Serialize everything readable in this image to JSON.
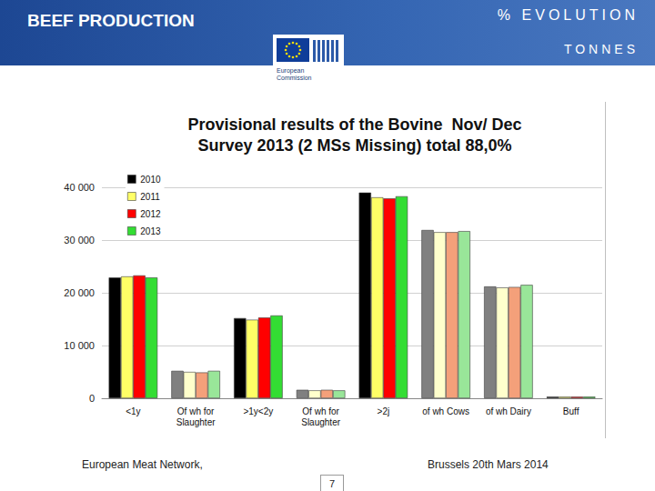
{
  "header": {
    "title": "BEEF PRODUCTION",
    "right_top": "% EVOLUTION",
    "right_bottom": "TONNES",
    "logo_text": [
      "European",
      "Commission"
    ]
  },
  "chart_data": {
    "type": "bar",
    "title": "Provisional results of the Bovine  Nov/ Dec\nSurvey 2013 (2 MSs Missing) total 88,0%",
    "categories": [
      "<1y",
      "Of wh for\nSlaughter",
      ">1y<2y",
      "Of wh for\nSlaughter",
      ">2j",
      "of wh Cows",
      "of wh Dairy",
      "Buff"
    ],
    "series": [
      {
        "name": "2010",
        "color": "#000000",
        "colors": [
          "#000000",
          "#808080",
          "#000000",
          "#808080",
          "#000000",
          "#808080",
          "#808080",
          "#000000"
        ],
        "values": [
          22900,
          5200,
          15200,
          1600,
          39000,
          31900,
          21200,
          300
        ]
      },
      {
        "name": "2011",
        "color": "#ffff66",
        "colors": [
          "#ffff66",
          "#ffffcc",
          "#ffff66",
          "#ffffcc",
          "#ffff66",
          "#ffffcc",
          "#ffffcc",
          "#ffff66"
        ],
        "values": [
          23100,
          5000,
          14900,
          1500,
          38100,
          31500,
          21000,
          300
        ]
      },
      {
        "name": "2012",
        "color": "#ff0000",
        "colors": [
          "#ff0000",
          "#f4a07a",
          "#ff0000",
          "#f4a07a",
          "#ff0000",
          "#f4a07a",
          "#f4a07a",
          "#ff0000"
        ],
        "values": [
          23300,
          4900,
          15300,
          1600,
          37900,
          31500,
          21100,
          300
        ]
      },
      {
        "name": "2013",
        "color": "#33dd33",
        "colors": [
          "#33dd33",
          "#99e699",
          "#33dd33",
          "#99e699",
          "#33dd33",
          "#99e699",
          "#99e699",
          "#33dd33"
        ],
        "values": [
          22900,
          5200,
          15700,
          1500,
          38300,
          31700,
          21500,
          300
        ]
      }
    ],
    "ylim": [
      0,
      40000
    ],
    "yticks": [
      0,
      {
        "value": 10000,
        "label": "10 000"
      },
      {
        "value": 20000,
        "label": "20 000"
      },
      {
        "value": 30000,
        "label": "30 000"
      },
      {
        "value": 40000,
        "label": "40 000"
      }
    ],
    "grid": true,
    "legend": "top-left"
  },
  "footer": {
    "left": "European Meat Network,",
    "right": "Brussels 20th Mars 2014",
    "page": "7"
  }
}
